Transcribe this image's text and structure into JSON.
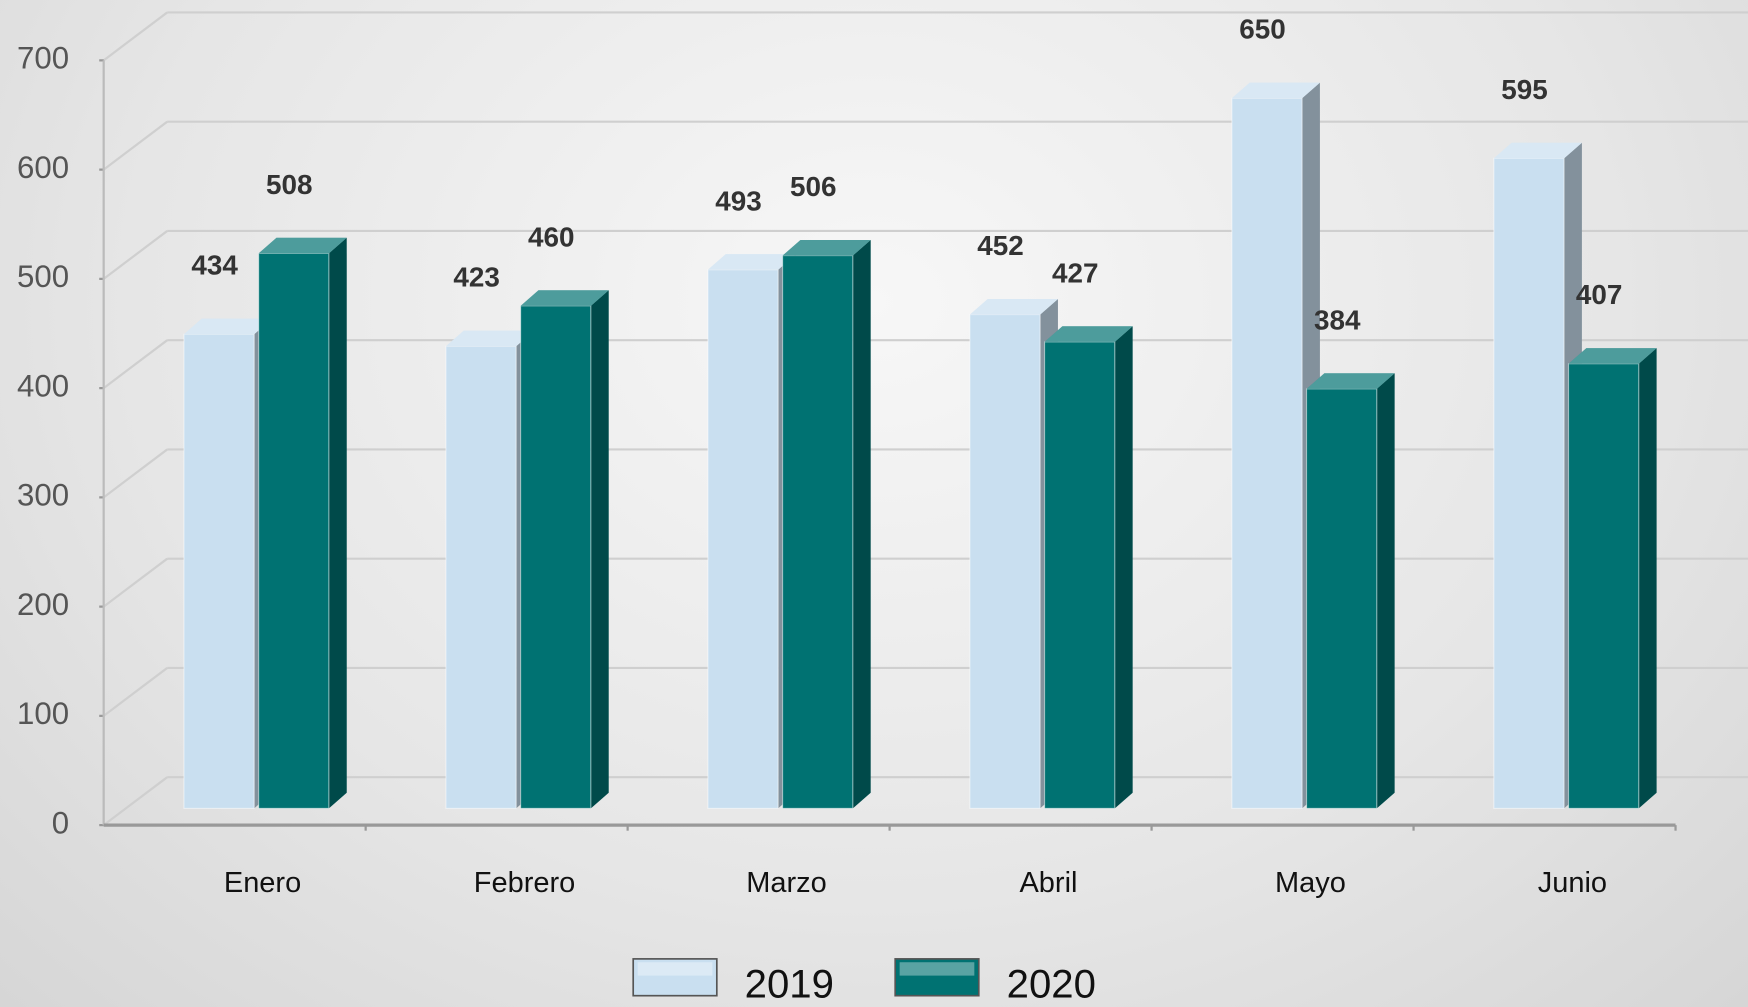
{
  "chart_data": {
    "type": "bar",
    "categories": [
      "Enero",
      "Febrero",
      "Marzo",
      "Abril",
      "Mayo",
      "Junio"
    ],
    "series": [
      {
        "name": "2019",
        "color": "#c9dff0",
        "values": [
          434,
          423,
          493,
          452,
          650,
          595
        ]
      },
      {
        "name": "2020",
        "color": "#007272",
        "values": [
          508,
          460,
          506,
          427,
          384,
          407
        ]
      }
    ],
    "ylim": [
      0,
      700
    ],
    "yticks": [
      0,
      100,
      200,
      300,
      400,
      500,
      600,
      700
    ],
    "grid": true,
    "legend": "bottom"
  }
}
